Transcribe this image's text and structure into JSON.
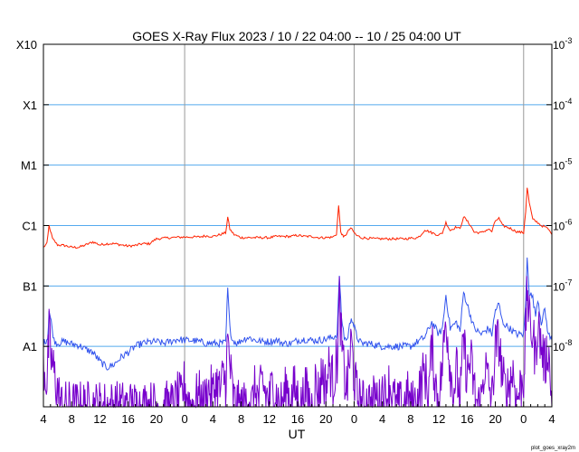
{
  "chart_data": {
    "type": "line",
    "title": "GOES X-Ray Flux   2023 / 10 / 22   04:00 -- 10 / 25   04:00   UT",
    "xlabel": "UT",
    "ylabel": "",
    "footnote": "plot_goes_xray2m",
    "x_range_hours": [
      0,
      72
    ],
    "x_ticks": [
      {
        "h": 0,
        "label": "4"
      },
      {
        "h": 4,
        "label": "8"
      },
      {
        "h": 8,
        "label": "12"
      },
      {
        "h": 12,
        "label": "16"
      },
      {
        "h": 16,
        "label": "20"
      },
      {
        "h": 20,
        "label": "0"
      },
      {
        "h": 24,
        "label": "4"
      },
      {
        "h": 28,
        "label": "8"
      },
      {
        "h": 32,
        "label": "12"
      },
      {
        "h": 36,
        "label": "16"
      },
      {
        "h": 40,
        "label": "20"
      },
      {
        "h": 44,
        "label": "0"
      },
      {
        "h": 48,
        "label": "4"
      },
      {
        "h": 52,
        "label": "8"
      },
      {
        "h": 56,
        "label": "12"
      },
      {
        "h": 60,
        "label": "16"
      },
      {
        "h": 64,
        "label": "20"
      },
      {
        "h": 68,
        "label": "0"
      },
      {
        "h": 72,
        "label": "4"
      }
    ],
    "day_boundaries_hours": [
      20,
      44,
      68
    ],
    "y_scale": "log",
    "y_range_exp": [
      -9,
      -3
    ],
    "left_ticks": [
      {
        "exp": -3,
        "label": "X10"
      },
      {
        "exp": -4,
        "label": "X1"
      },
      {
        "exp": -5,
        "label": "M1"
      },
      {
        "exp": -6,
        "label": "C1"
      },
      {
        "exp": -7,
        "label": "B1"
      },
      {
        "exp": -8,
        "label": "A1"
      }
    ],
    "right_ticks": [
      {
        "exp": -3,
        "label": "10",
        "sup": "-3"
      },
      {
        "exp": -4,
        "label": "10",
        "sup": "-4"
      },
      {
        "exp": -5,
        "label": "10",
        "sup": "-5"
      },
      {
        "exp": -6,
        "label": "10",
        "sup": "-6"
      },
      {
        "exp": -7,
        "label": "10",
        "sup": "-7"
      },
      {
        "exp": -8,
        "label": "10",
        "sup": "-8"
      }
    ],
    "grid_exps": [
      -4,
      -5,
      -6,
      -7,
      -8
    ],
    "colors": {
      "long": "#ff2200",
      "long_alt": "#ff9900",
      "short": "#3355ee",
      "short_alt": "#7700cc",
      "grid": "#55aaee",
      "day_line": "#999999"
    },
    "series": [
      {
        "key": "long",
        "points": [
          [
            0,
            -6.36
          ],
          [
            0.5,
            -6.3
          ],
          [
            0.8,
            -6.0
          ],
          [
            1.3,
            -6.22
          ],
          [
            2,
            -6.32
          ],
          [
            3,
            -6.33
          ],
          [
            4,
            -6.36
          ],
          [
            5,
            -6.36
          ],
          [
            6,
            -6.32
          ],
          [
            7,
            -6.27
          ],
          [
            8,
            -6.32
          ],
          [
            9,
            -6.3
          ],
          [
            10,
            -6.3
          ],
          [
            11,
            -6.32
          ],
          [
            12,
            -6.34
          ],
          [
            13,
            -6.33
          ],
          [
            14,
            -6.3
          ],
          [
            15,
            -6.3
          ],
          [
            16,
            -6.22
          ],
          [
            18,
            -6.2
          ],
          [
            20,
            -6.19
          ],
          [
            22,
            -6.19
          ],
          [
            23,
            -6.17
          ],
          [
            24,
            -6.18
          ],
          [
            25,
            -6.15
          ],
          [
            25.8,
            -6.12
          ],
          [
            26.1,
            -5.86
          ],
          [
            26.4,
            -6.06
          ],
          [
            27,
            -6.15
          ],
          [
            28,
            -6.2
          ],
          [
            29,
            -6.2
          ],
          [
            30,
            -6.2
          ],
          [
            31,
            -6.2
          ],
          [
            32,
            -6.2
          ],
          [
            33,
            -6.18
          ],
          [
            34,
            -6.18
          ],
          [
            35,
            -6.18
          ],
          [
            36,
            -6.16
          ],
          [
            37,
            -6.18
          ],
          [
            38,
            -6.18
          ],
          [
            39,
            -6.2
          ],
          [
            40,
            -6.2
          ],
          [
            41,
            -6.19
          ],
          [
            41.5,
            -6.14
          ],
          [
            41.8,
            -5.67
          ],
          [
            42.1,
            -6.1
          ],
          [
            42.5,
            -6.2
          ],
          [
            43.5,
            -6.04
          ],
          [
            44.3,
            -6.16
          ],
          [
            45,
            -6.2
          ],
          [
            47,
            -6.22
          ],
          [
            49,
            -6.22
          ],
          [
            51,
            -6.22
          ],
          [
            53,
            -6.2
          ],
          [
            53.5,
            -6.15
          ],
          [
            54,
            -6.07
          ],
          [
            55,
            -6.12
          ],
          [
            56,
            -6.16
          ],
          [
            56.5,
            -6.12
          ],
          [
            57,
            -5.95
          ],
          [
            57.6,
            -6.08
          ],
          [
            58.5,
            -6.02
          ],
          [
            59,
            -6.06
          ],
          [
            59.5,
            -5.85
          ],
          [
            60.5,
            -6.0
          ],
          [
            61,
            -6.11
          ],
          [
            62,
            -6.12
          ],
          [
            63,
            -6.06
          ],
          [
            63.5,
            -6.1
          ],
          [
            64,
            -5.92
          ],
          [
            64.5,
            -5.88
          ],
          [
            65,
            -6.0
          ],
          [
            66,
            -6.04
          ],
          [
            67,
            -6.1
          ],
          [
            68,
            -6.12
          ],
          [
            68.3,
            -5.76
          ],
          [
            68.5,
            -5.37
          ],
          [
            68.8,
            -5.62
          ],
          [
            69.3,
            -5.9
          ],
          [
            70,
            -5.95
          ],
          [
            70.5,
            -6.0
          ],
          [
            71,
            -6.02
          ],
          [
            71.5,
            -6.06
          ],
          [
            72,
            -6.15
          ]
        ]
      },
      {
        "key": "short",
        "points": [
          [
            0,
            -7.95
          ],
          [
            0.6,
            -7.86
          ],
          [
            0.8,
            -7.4
          ],
          [
            1.1,
            -7.6
          ],
          [
            1.5,
            -7.9
          ],
          [
            2,
            -7.95
          ],
          [
            3,
            -7.92
          ],
          [
            4,
            -7.96
          ],
          [
            5,
            -7.98
          ],
          [
            6,
            -8.05
          ],
          [
            7,
            -8.1
          ],
          [
            8,
            -8.25
          ],
          [
            9,
            -8.35
          ],
          [
            10,
            -8.3
          ],
          [
            11,
            -8.18
          ],
          [
            12,
            -8.1
          ],
          [
            13,
            -8.0
          ],
          [
            14,
            -7.95
          ],
          [
            15,
            -7.93
          ],
          [
            16,
            -7.92
          ],
          [
            17,
            -7.95
          ],
          [
            18,
            -7.92
          ],
          [
            19,
            -7.88
          ],
          [
            20,
            -7.9
          ],
          [
            21,
            -7.9
          ],
          [
            22,
            -7.92
          ],
          [
            23,
            -7.95
          ],
          [
            24,
            -7.95
          ],
          [
            25,
            -7.95
          ],
          [
            25.8,
            -7.94
          ],
          [
            26.1,
            -7.05
          ],
          [
            26.4,
            -7.7
          ],
          [
            26.8,
            -7.9
          ],
          [
            27.5,
            -7.95
          ],
          [
            28,
            -7.9
          ],
          [
            29,
            -7.85
          ],
          [
            30,
            -7.9
          ],
          [
            31,
            -7.92
          ],
          [
            32,
            -7.92
          ],
          [
            33,
            -7.9
          ],
          [
            34,
            -7.95
          ],
          [
            35,
            -7.95
          ],
          [
            36,
            -7.9
          ],
          [
            37,
            -7.88
          ],
          [
            38,
            -7.9
          ],
          [
            39,
            -7.9
          ],
          [
            40,
            -7.88
          ],
          [
            41,
            -7.85
          ],
          [
            41.6,
            -7.8
          ],
          [
            41.9,
            -6.8
          ],
          [
            42.2,
            -7.5
          ],
          [
            42.6,
            -7.85
          ],
          [
            43,
            -7.9
          ],
          [
            43.6,
            -7.5
          ],
          [
            44.4,
            -7.85
          ],
          [
            45,
            -7.95
          ],
          [
            46,
            -7.95
          ],
          [
            48,
            -8.0
          ],
          [
            50,
            -8.0
          ],
          [
            52,
            -8.0
          ],
          [
            53,
            -7.92
          ],
          [
            54,
            -7.85
          ],
          [
            55,
            -7.6
          ],
          [
            56,
            -7.8
          ],
          [
            56.5,
            -7.7
          ],
          [
            57,
            -7.15
          ],
          [
            57.6,
            -7.7
          ],
          [
            58.5,
            -7.6
          ],
          [
            59,
            -7.75
          ],
          [
            59.5,
            -7.1
          ],
          [
            60.5,
            -7.5
          ],
          [
            61,
            -7.7
          ],
          [
            62,
            -7.8
          ],
          [
            63,
            -7.7
          ],
          [
            63.5,
            -7.8
          ],
          [
            64,
            -7.4
          ],
          [
            64.5,
            -7.3
          ],
          [
            65,
            -7.6
          ],
          [
            66,
            -7.7
          ],
          [
            67,
            -7.8
          ],
          [
            68,
            -7.8
          ],
          [
            68.3,
            -7.3
          ],
          [
            68.5,
            -6.5
          ],
          [
            68.8,
            -7.1
          ],
          [
            69.3,
            -7.2
          ],
          [
            69.7,
            -7.5
          ],
          [
            70,
            -7.2
          ],
          [
            70.5,
            -7.6
          ],
          [
            71,
            -7.4
          ],
          [
            71.5,
            -7.8
          ],
          [
            72,
            -7.9
          ]
        ]
      },
      {
        "key": "short_alt",
        "points": [
          [
            0,
            -8.3
          ],
          [
            0.5,
            -8.6
          ],
          [
            0.8,
            -7.8
          ],
          [
            1.1,
            -8.2
          ],
          [
            1.6,
            -8.5
          ],
          [
            2.3,
            -8.9
          ],
          [
            2.6,
            -9.0
          ],
          [
            18.5,
            -9.0
          ],
          [
            19,
            -8.85
          ],
          [
            19.5,
            -8.9
          ],
          [
            20,
            -8.6
          ],
          [
            20.5,
            -8.9
          ],
          [
            21,
            -9.0
          ],
          [
            22,
            -8.8
          ],
          [
            22.5,
            -9.0
          ],
          [
            23,
            -8.85
          ],
          [
            23.5,
            -8.7
          ],
          [
            24,
            -8.8
          ],
          [
            24.5,
            -8.6
          ],
          [
            25,
            -8.75
          ],
          [
            25.5,
            -8.5
          ],
          [
            25.8,
            -8.6
          ],
          [
            26.1,
            -7.9
          ],
          [
            26.4,
            -8.3
          ],
          [
            26.8,
            -8.8
          ],
          [
            27.2,
            -9.0
          ],
          [
            28.5,
            -9.0
          ],
          [
            29,
            -8.8
          ],
          [
            29.5,
            -9.0
          ],
          [
            30,
            -8.7
          ],
          [
            30.5,
            -8.9
          ],
          [
            31,
            -8.6
          ],
          [
            31.5,
            -8.8
          ],
          [
            32,
            -8.9
          ],
          [
            32.5,
            -8.6
          ],
          [
            33,
            -8.8
          ],
          [
            33.5,
            -9.0
          ],
          [
            34,
            -8.9
          ],
          [
            34.5,
            -8.65
          ],
          [
            35,
            -8.95
          ],
          [
            35.5,
            -8.7
          ],
          [
            36,
            -8.85
          ],
          [
            36.5,
            -9.0
          ],
          [
            37,
            -8.7
          ],
          [
            37.5,
            -8.85
          ],
          [
            38,
            -9.0
          ],
          [
            38.5,
            -8.6
          ],
          [
            39,
            -8.8
          ],
          [
            39.5,
            -8.4
          ],
          [
            40,
            -8.7
          ],
          [
            40.5,
            -8.3
          ],
          [
            41,
            -8.6
          ],
          [
            41.6,
            -8.2
          ],
          [
            41.9,
            -7.2
          ],
          [
            42.2,
            -7.9
          ],
          [
            42.6,
            -8.5
          ],
          [
            43,
            -8.7
          ],
          [
            43.6,
            -7.9
          ],
          [
            44,
            -8.5
          ],
          [
            44.4,
            -8.8
          ],
          [
            45,
            -9.0
          ],
          [
            46,
            -8.9
          ],
          [
            46.5,
            -9.0
          ],
          [
            47,
            -8.8
          ],
          [
            47.5,
            -9.0
          ],
          [
            48,
            -8.7
          ],
          [
            48.5,
            -8.9
          ],
          [
            49,
            -8.6
          ],
          [
            49.5,
            -8.85
          ],
          [
            50,
            -9.0
          ],
          [
            51,
            -9.0
          ],
          [
            51.5,
            -8.8
          ],
          [
            52,
            -9.0
          ],
          [
            53,
            -8.9
          ],
          [
            53.5,
            -8.6
          ],
          [
            54,
            -8.4
          ],
          [
            54.5,
            -8.8
          ],
          [
            55,
            -8.0
          ],
          [
            55.5,
            -8.6
          ],
          [
            56,
            -8.9
          ],
          [
            56.5,
            -8.3
          ],
          [
            57,
            -7.5
          ],
          [
            57.5,
            -8.2
          ],
          [
            58,
            -8.8
          ],
          [
            58.5,
            -8.4
          ],
          [
            59,
            -8.9
          ],
          [
            59.5,
            -7.9
          ],
          [
            60,
            -8.5
          ],
          [
            60.5,
            -8.2
          ],
          [
            61,
            -8.7
          ],
          [
            61.5,
            -9.0
          ],
          [
            62,
            -8.9
          ],
          [
            62.5,
            -8.3
          ],
          [
            63,
            -8.6
          ],
          [
            63.5,
            -8.9
          ],
          [
            64,
            -8.0
          ],
          [
            64.5,
            -7.9
          ],
          [
            65,
            -8.5
          ],
          [
            65.5,
            -8.8
          ],
          [
            66,
            -8.6
          ],
          [
            66.5,
            -8.4
          ],
          [
            67,
            -8.9
          ],
          [
            67.5,
            -8.7
          ],
          [
            68,
            -8.5
          ],
          [
            68.3,
            -7.8
          ],
          [
            68.5,
            -7.0
          ],
          [
            68.8,
            -7.6
          ],
          [
            69.3,
            -7.8
          ],
          [
            69.7,
            -8.2
          ],
          [
            70,
            -7.6
          ],
          [
            70.5,
            -8.0
          ],
          [
            71,
            -8.3
          ],
          [
            71.5,
            -8.0
          ],
          [
            72,
            -9.0
          ]
        ]
      }
    ]
  }
}
